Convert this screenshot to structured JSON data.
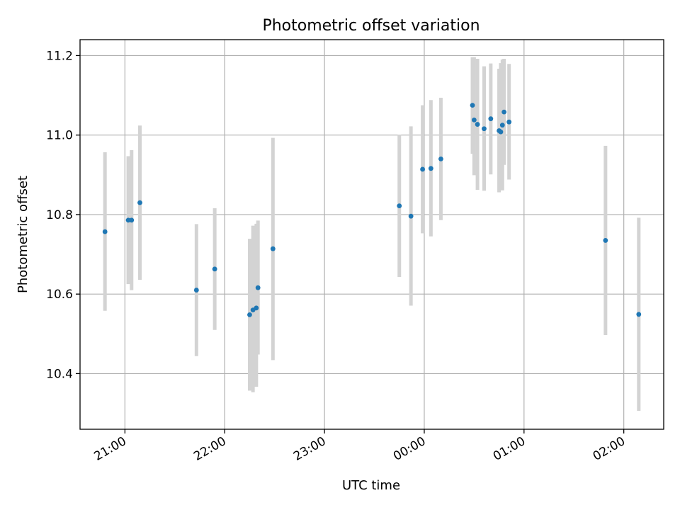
{
  "chart_data": {
    "type": "scatter",
    "title": "Photometric offset variation",
    "xlabel": "UTC time",
    "ylabel": "Photometric offset",
    "x_ticks": [
      "21:00",
      "22:00",
      "23:00",
      "00:00",
      "01:00",
      "02:00"
    ],
    "y_ticks": [
      "10.4",
      "10.6",
      "10.8",
      "11.0",
      "11.2"
    ],
    "y_tick_values": [
      10.4,
      10.6,
      10.8,
      11.0,
      11.2
    ],
    "xlim": [
      "20:33",
      "02:24"
    ],
    "ylim": [
      10.26,
      11.24
    ],
    "grid": true,
    "colors": {
      "point": "#1f77b4",
      "errorbar": "#d3d3d3",
      "grid": "#b0b0b0"
    },
    "series": [
      {
        "points": [
          {
            "x": "20:48",
            "y": 10.757,
            "yerr_low": 10.558,
            "yerr_high": 10.957
          },
          {
            "x": "21:02",
            "y": 10.786,
            "yerr_low": 10.625,
            "yerr_high": 10.947
          },
          {
            "x": "21:04",
            "y": 10.786,
            "yerr_low": 10.61,
            "yerr_high": 10.962
          },
          {
            "x": "21:09",
            "y": 10.83,
            "yerr_low": 10.636,
            "yerr_high": 11.024
          },
          {
            "x": "21:43",
            "y": 10.61,
            "yerr_low": 10.444,
            "yerr_high": 10.776
          },
          {
            "x": "21:54",
            "y": 10.663,
            "yerr_low": 10.51,
            "yerr_high": 10.816
          },
          {
            "x": "22:15",
            "y": 10.548,
            "yerr_low": 10.357,
            "yerr_high": 10.739
          },
          {
            "x": "22:17",
            "y": 10.56,
            "yerr_low": 10.353,
            "yerr_high": 10.772
          },
          {
            "x": "22:19",
            "y": 10.565,
            "yerr_low": 10.367,
            "yerr_high": 10.777
          },
          {
            "x": "22:20",
            "y": 10.616,
            "yerr_low": 10.448,
            "yerr_high": 10.785
          },
          {
            "x": "22:29",
            "y": 10.714,
            "yerr_low": 10.434,
            "yerr_high": 10.993
          },
          {
            "x": "23:45",
            "y": 10.822,
            "yerr_low": 10.643,
            "yerr_high": 11.001
          },
          {
            "x": "23:52",
            "y": 10.796,
            "yerr_low": 10.571,
            "yerr_high": 11.022
          },
          {
            "x": "23:59",
            "y": 10.914,
            "yerr_low": 10.753,
            "yerr_high": 11.075
          },
          {
            "x": "00:04",
            "y": 10.916,
            "yerr_low": 10.745,
            "yerr_high": 11.088
          },
          {
            "x": "00:10",
            "y": 10.94,
            "yerr_low": 10.786,
            "yerr_high": 11.094
          },
          {
            "x": "00:29",
            "y": 11.075,
            "yerr_low": 10.953,
            "yerr_high": 11.196
          },
          {
            "x": "00:30",
            "y": 11.038,
            "yerr_low": 10.899,
            "yerr_high": 11.196
          },
          {
            "x": "00:32",
            "y": 11.027,
            "yerr_low": 10.862,
            "yerr_high": 11.192
          },
          {
            "x": "00:36",
            "y": 11.016,
            "yerr_low": 10.86,
            "yerr_high": 11.173
          },
          {
            "x": "00:40",
            "y": 11.041,
            "yerr_low": 10.901,
            "yerr_high": 11.18
          },
          {
            "x": "00:45",
            "y": 11.011,
            "yerr_low": 10.856,
            "yerr_high": 11.167
          },
          {
            "x": "00:46",
            "y": 11.008,
            "yerr_low": 10.862,
            "yerr_high": 11.181
          },
          {
            "x": "00:47",
            "y": 11.025,
            "yerr_low": 10.861,
            "yerr_high": 11.19
          },
          {
            "x": "00:48",
            "y": 11.058,
            "yerr_low": 10.925,
            "yerr_high": 11.192
          },
          {
            "x": "00:51",
            "y": 11.033,
            "yerr_low": 10.888,
            "yerr_high": 11.179
          },
          {
            "x": "01:49",
            "y": 10.735,
            "yerr_low": 10.497,
            "yerr_high": 10.973
          },
          {
            "x": "02:09",
            "y": 10.549,
            "yerr_low": 10.306,
            "yerr_high": 10.792
          }
        ]
      }
    ]
  }
}
